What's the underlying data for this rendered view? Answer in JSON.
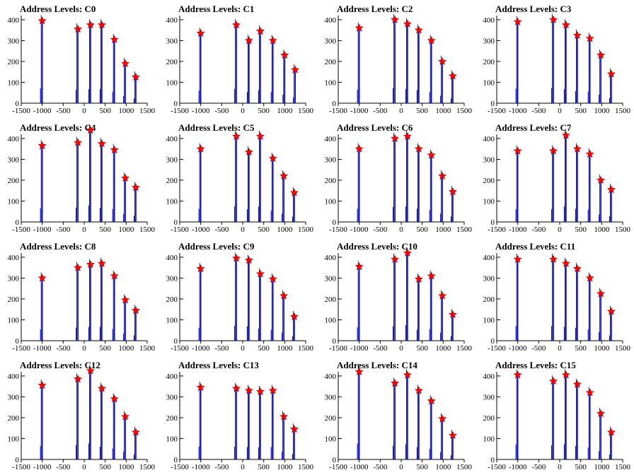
{
  "figure": {
    "xlim": [
      -1500,
      1500
    ],
    "ylim": [
      0,
      420
    ],
    "x_ticks": [
      -1500,
      -1000,
      -500,
      0,
      500,
      1000,
      1500
    ],
    "y_ticks": [
      0,
      100,
      200,
      300,
      400
    ],
    "colors": {
      "histogram": "#0000ff",
      "marker": "#ff0000",
      "axis": "#000000"
    }
  },
  "chart_data": [
    {
      "type": "bar",
      "title": "Address Levels: C0",
      "x_peaks": [
        -1000,
        -150,
        150,
        420,
        720,
        980,
        1230
      ],
      "y_peaks": [
        395,
        355,
        375,
        375,
        305,
        190,
        125
      ]
    },
    {
      "type": "bar",
      "title": "Address Levels: C1",
      "x_peaks": [
        -1000,
        -150,
        150,
        420,
        720,
        1000,
        1250
      ],
      "y_peaks": [
        335,
        375,
        300,
        345,
        300,
        230,
        160
      ]
    },
    {
      "type": "bar",
      "title": "Address Levels: C2",
      "x_peaks": [
        -1000,
        -150,
        150,
        420,
        720,
        980,
        1230
      ],
      "y_peaks": [
        360,
        400,
        380,
        350,
        300,
        200,
        130
      ]
    },
    {
      "type": "bar",
      "title": "Address Levels: C3",
      "x_peaks": [
        -1000,
        -150,
        150,
        420,
        720,
        980,
        1230
      ],
      "y_peaks": [
        390,
        400,
        375,
        325,
        310,
        230,
        140
      ]
    },
    {
      "type": "bar",
      "title": "Address Levels: C4",
      "x_peaks": [
        -1000,
        -150,
        150,
        420,
        720,
        980,
        1230
      ],
      "y_peaks": [
        365,
        380,
        440,
        375,
        345,
        210,
        165
      ]
    },
    {
      "type": "bar",
      "title": "Address Levels: C5",
      "x_peaks": [
        -1000,
        -150,
        150,
        420,
        720,
        980,
        1230
      ],
      "y_peaks": [
        350,
        410,
        335,
        410,
        305,
        220,
        140
      ]
    },
    {
      "type": "bar",
      "title": "Address Levels: C6",
      "x_peaks": [
        -1000,
        -150,
        150,
        420,
        720,
        980,
        1230
      ],
      "y_peaks": [
        350,
        400,
        410,
        350,
        320,
        220,
        145
      ]
    },
    {
      "type": "bar",
      "title": "Address Levels: C7",
      "x_peaks": [
        -1000,
        -150,
        150,
        420,
        720,
        980,
        1230
      ],
      "y_peaks": [
        340,
        340,
        415,
        350,
        325,
        200,
        155
      ]
    },
    {
      "type": "bar",
      "title": "Address Levels: C8",
      "x_peaks": [
        -1000,
        -150,
        150,
        420,
        720,
        980,
        1230
      ],
      "y_peaks": [
        300,
        350,
        365,
        370,
        310,
        195,
        145
      ]
    },
    {
      "type": "bar",
      "title": "Address Levels: C9",
      "x_peaks": [
        -1000,
        -150,
        150,
        420,
        720,
        980,
        1230
      ],
      "y_peaks": [
        345,
        395,
        385,
        320,
        295,
        215,
        115
      ]
    },
    {
      "type": "bar",
      "title": "Address Levels: C10",
      "x_peaks": [
        -1000,
        -150,
        150,
        420,
        720,
        980,
        1230
      ],
      "y_peaks": [
        355,
        390,
        420,
        295,
        310,
        215,
        125
      ]
    },
    {
      "type": "bar",
      "title": "Address Levels: C11",
      "x_peaks": [
        -1000,
        -150,
        150,
        420,
        720,
        980,
        1230
      ],
      "y_peaks": [
        390,
        390,
        370,
        345,
        300,
        225,
        140
      ]
    },
    {
      "type": "bar",
      "title": "Address Levels: C12",
      "x_peaks": [
        -1000,
        -150,
        150,
        420,
        720,
        980,
        1230
      ],
      "y_peaks": [
        355,
        385,
        425,
        340,
        290,
        205,
        130
      ]
    },
    {
      "type": "bar",
      "title": "Address Levels: C13",
      "x_peaks": [
        -1000,
        -150,
        150,
        420,
        720,
        980,
        1230
      ],
      "y_peaks": [
        345,
        340,
        330,
        325,
        330,
        205,
        145
      ]
    },
    {
      "type": "bar",
      "title": "Address Levels: C14",
      "x_peaks": [
        -1000,
        -150,
        150,
        420,
        720,
        980,
        1230
      ],
      "y_peaks": [
        420,
        365,
        405,
        330,
        280,
        195,
        115
      ]
    },
    {
      "type": "bar",
      "title": "Address Levels: C15",
      "x_peaks": [
        -1000,
        -150,
        150,
        420,
        720,
        980,
        1230
      ],
      "y_peaks": [
        405,
        375,
        405,
        360,
        320,
        220,
        130
      ]
    }
  ]
}
